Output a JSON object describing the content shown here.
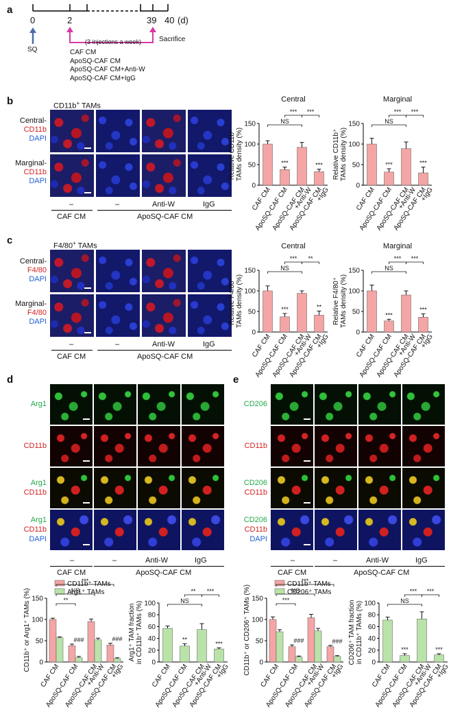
{
  "panel_letters": {
    "a": "a",
    "b": "b",
    "c": "c",
    "d": "d",
    "e": "e"
  },
  "timeline": {
    "ticks": [
      "0",
      "2",
      "39",
      "40"
    ],
    "unit": "(d)",
    "sq_label": "SQ",
    "injections_note": "(3 injections a week)",
    "sacrifice_label": "Sacrifice",
    "treatments": [
      "CAF CM",
      "ApoSQ-CAF CM",
      "ApoSQ-CAF CM+Anti-W",
      "ApoSQ-CAF CM+IgG"
    ]
  },
  "panel_b": {
    "header_prefix": "CD11b",
    "header_suffix": " TAMs",
    "row_labels": [
      {
        "region": "Central-",
        "marker": "CD11b",
        "stain": "DAPI"
      },
      {
        "region": "Marginal-",
        "marker": "CD11b",
        "stain": "DAPI"
      }
    ]
  },
  "panel_c": {
    "header_prefix": "F4/80",
    "header_suffix": " TAMs",
    "row_labels": [
      {
        "region": "Central-",
        "marker": "F4/80",
        "stain": "DAPI"
      },
      {
        "region": "Marginal-",
        "marker": "F4/80",
        "stain": "DAPI"
      }
    ]
  },
  "panel_d": {
    "row_labels": [
      [
        "Arg1"
      ],
      [
        "CD11b"
      ],
      [
        "Arg1",
        "CD11b"
      ],
      [
        "Arg1",
        "CD11b",
        "DAPI"
      ]
    ]
  },
  "panel_e": {
    "row_labels": [
      [
        "CD206"
      ],
      [
        "CD11b"
      ],
      [
        "CD206",
        "CD11b"
      ],
      [
        "CD206",
        "CD11b",
        "DAPI"
      ]
    ]
  },
  "group_labels": {
    "dash": "–",
    "anti_w": "Anti-W",
    "igg": "IgG",
    "caf_cm": "CAF CM",
    "aposq_caf_cm": "ApoSQ-CAF CM"
  },
  "x_categories": [
    "CAF CM",
    "ApoSQ-CAF CM",
    "ApoSQ-CAF CM\n+Anti-W",
    "ApoSQ-CAF CM\n+IgG"
  ],
  "colors": {
    "bar_red": "#f4a5a5",
    "bar_green": "#b9e3a8",
    "accent_magenta": "#d63aa4",
    "sq_arrow": "#4a6ea8"
  },
  "chart_data": [
    {
      "id": "b-central",
      "type": "bar",
      "title": "Central",
      "ylabel": "Relative CD11b⁺ TAMs density (%)",
      "categories": [
        "CAF CM",
        "ApoSQ-CAF CM",
        "ApoSQ-CAF CM+Anti-W",
        "ApoSQ-CAF CM+IgG"
      ],
      "values": [
        100,
        38,
        92,
        33
      ],
      "errors": [
        8,
        6,
        12,
        6
      ],
      "ylim": [
        0,
        150
      ],
      "yticks": [
        0,
        50,
        100,
        150
      ],
      "marks": [
        "",
        "***",
        "",
        "***"
      ],
      "brackets": [
        {
          "from": 1,
          "to": 2,
          "label": "***"
        },
        {
          "from": 2,
          "to": 3,
          "label": "***"
        },
        {
          "from": 0,
          "to": 2,
          "label": "NS"
        }
      ]
    },
    {
      "id": "b-marginal",
      "type": "bar",
      "title": "Marginal",
      "ylabel": "Relative CD11b⁺ TAMs density (%)",
      "categories": [
        "CAF CM",
        "ApoSQ-CAF CM",
        "ApoSQ-CAF CM+Anti-W",
        "ApoSQ-CAF CM+IgG"
      ],
      "values": [
        100,
        32,
        89,
        30
      ],
      "errors": [
        14,
        8,
        16,
        14
      ],
      "ylim": [
        0,
        150
      ],
      "yticks": [
        0,
        50,
        100,
        150
      ],
      "marks": [
        "",
        "***",
        "",
        "***"
      ],
      "brackets": [
        {
          "from": 1,
          "to": 2,
          "label": "***"
        },
        {
          "from": 2,
          "to": 3,
          "label": "***"
        },
        {
          "from": 0,
          "to": 2,
          "label": "NS"
        }
      ]
    },
    {
      "id": "c-central",
      "type": "bar",
      "title": "Central",
      "ylabel": "Relative F4/80⁺ TAMs density (%)",
      "categories": [
        "CAF CM",
        "ApoSQ-CAF CM",
        "ApoSQ-CAF CM+Anti-W",
        "ApoSQ-CAF CM+IgG"
      ],
      "values": [
        100,
        37,
        94,
        41
      ],
      "errors": [
        12,
        8,
        6,
        10
      ],
      "ylim": [
        0,
        150
      ],
      "yticks": [
        0,
        50,
        100,
        150
      ],
      "marks": [
        "",
        "***",
        "",
        "**"
      ],
      "brackets": [
        {
          "from": 1,
          "to": 2,
          "label": "***"
        },
        {
          "from": 2,
          "to": 3,
          "label": "**"
        },
        {
          "from": 0,
          "to": 2,
          "label": "NS"
        }
      ]
    },
    {
      "id": "c-marginal",
      "type": "bar",
      "title": "Marginal",
      "ylabel": "Relative F4/80⁺ TAMs density (%)",
      "categories": [
        "CAF CM",
        "ApoSQ-CAF CM",
        "ApoSQ-CAF CM+Anti-W",
        "ApoSQ-CAF CM+IgG"
      ],
      "values": [
        100,
        27,
        90,
        36
      ],
      "errors": [
        14,
        4,
        10,
        8
      ],
      "ylim": [
        0,
        150
      ],
      "yticks": [
        0,
        50,
        100,
        150
      ],
      "marks": [
        "",
        "***",
        "",
        "***"
      ],
      "brackets": [
        {
          "from": 1,
          "to": 2,
          "label": "***"
        },
        {
          "from": 2,
          "to": 3,
          "label": "***"
        },
        {
          "from": 0,
          "to": 2,
          "label": "NS"
        }
      ]
    },
    {
      "id": "d-left",
      "type": "bar",
      "ylabel": "CD11b⁺ or Arg1⁺ TAMs (%)",
      "categories": [
        "CAF CM",
        "ApoSQ-CAF CM",
        "ApoSQ-CAF CM+Anti-W",
        "ApoSQ-CAF CM+IgG"
      ],
      "series": [
        {
          "name": "CD11b⁺ TAMs",
          "values": [
            100,
            38,
            95,
            40
          ],
          "errors": [
            3,
            4,
            6,
            4
          ]
        },
        {
          "name": "Arg1⁺ TAMs",
          "values": [
            57,
            10,
            52,
            8
          ],
          "errors": [
            2,
            3,
            4,
            2
          ]
        }
      ],
      "ylim": [
        0,
        150
      ],
      "yticks": [
        0,
        50,
        100,
        150
      ],
      "marks": [
        "",
        "###",
        "",
        "###"
      ],
      "brackets": [
        {
          "from": 0,
          "to": 1,
          "label": "**"
        },
        {
          "from": 0,
          "to": 2,
          "label": "NS"
        },
        {
          "from": 0,
          "to": 3,
          "label": "***"
        }
      ]
    },
    {
      "id": "d-right",
      "type": "bar",
      "ylabel": "Arg1⁺ TAM fraction in CD11b⁺ TAMs (%)",
      "categories": [
        "CAF CM",
        "ApoSQ-CAF CM",
        "ApoSQ-CAF CM+Anti-W",
        "ApoSQ-CAF CM+IgG"
      ],
      "values": [
        57,
        27,
        55,
        22
      ],
      "errors": [
        4,
        4,
        10,
        2
      ],
      "ylim": [
        0,
        100
      ],
      "yticks": [
        0,
        20,
        40,
        60,
        80,
        100
      ],
      "marks": [
        "",
        "**",
        "",
        "***"
      ],
      "brackets": [
        {
          "from": 1,
          "to": 2,
          "label": "**"
        },
        {
          "from": 2,
          "to": 3,
          "label": "***"
        },
        {
          "from": 0,
          "to": 2,
          "label": "NS"
        }
      ]
    },
    {
      "id": "e-left",
      "type": "bar",
      "ylabel": "CD11b⁺ or CD206⁺ TAMs (%)",
      "categories": [
        "CAF CM",
        "ApoSQ-CAF CM",
        "ApoSQ-CAF CM+Anti-W",
        "ApoSQ-CAF CM+IgG"
      ],
      "series": [
        {
          "name": "CD11b⁺ TAMs",
          "values": [
            100,
            36,
            104,
            36
          ],
          "errors": [
            6,
            4,
            8,
            3
          ]
        },
        {
          "name": "CD206⁺ TAMs",
          "values": [
            71,
            12,
            73,
            13
          ],
          "errors": [
            5,
            2,
            6,
            2
          ]
        }
      ],
      "ylim": [
        0,
        150
      ],
      "yticks": [
        0,
        50,
        100,
        150
      ],
      "marks": [
        "",
        "###",
        "",
        "###"
      ],
      "brackets": [
        {
          "from": 0,
          "to": 1,
          "label": "***"
        },
        {
          "from": 0,
          "to": 2,
          "label": "NS"
        },
        {
          "from": 0,
          "to": 3,
          "label": "***"
        }
      ]
    },
    {
      "id": "e-right",
      "type": "bar",
      "ylabel": "CD206⁺ TAM fraction in CD11b⁺ TAMs (%)",
      "categories": [
        "CAF CM",
        "ApoSQ-CAF CM",
        "ApoSQ-CAF CM+Anti-W",
        "ApoSQ-CAF CM+IgG"
      ],
      "values": [
        71,
        11,
        73,
        12
      ],
      "errors": [
        5,
        3,
        12,
        2
      ],
      "ylim": [
        0,
        100
      ],
      "yticks": [
        0,
        20,
        40,
        60,
        80,
        100
      ],
      "marks": [
        "",
        "***",
        "",
        "***"
      ],
      "brackets": [
        {
          "from": 1,
          "to": 2,
          "label": "***"
        },
        {
          "from": 2,
          "to": 3,
          "label": "***"
        },
        {
          "from": 0,
          "to": 2,
          "label": "NS"
        }
      ]
    }
  ]
}
